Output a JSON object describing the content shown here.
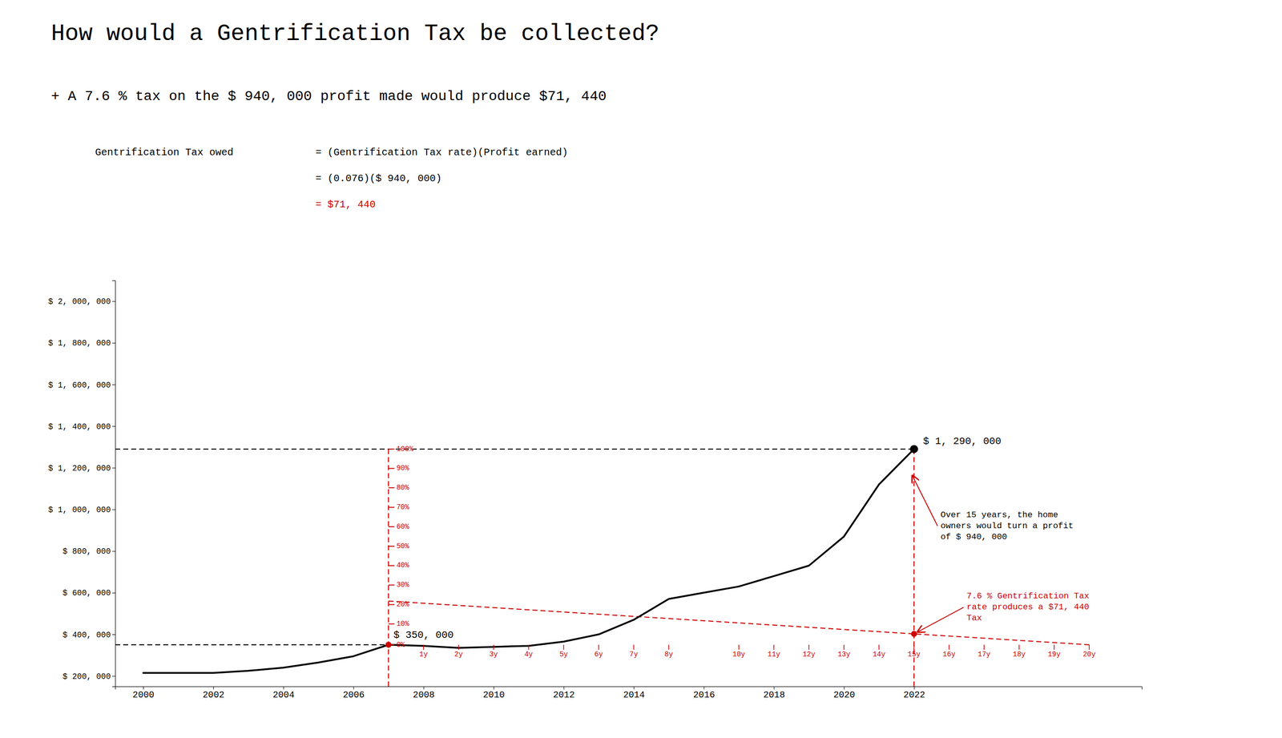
{
  "chart_data": {
    "type": "line",
    "title": "How would a Gentrification Tax be collected?",
    "subtitle": "+   A 7.6 % tax on the $ 940, 000 profit made would produce $71, 440",
    "formula": {
      "label": "Gentrification Tax owed",
      "lines": [
        "= (Gentrification Tax rate)(Profit earned)",
        "= (0.076)($ 940, 000)",
        "= $71, 440"
      ],
      "colors": [
        "#000000",
        "#000000",
        "#cc0000"
      ]
    },
    "x": [
      2000,
      2001,
      2002,
      2003,
      2004,
      2005,
      2006,
      2007,
      2008,
      2009,
      2010,
      2011,
      2012,
      2013,
      2014,
      2015,
      2016,
      2017,
      2018,
      2019,
      2020,
      2021,
      2022
    ],
    "series": [
      {
        "color": "#000000",
        "values": [
          215000,
          215000,
          215000,
          225000,
          240000,
          265000,
          295000,
          350000,
          345000,
          335000,
          340000,
          345000,
          365000,
          400000,
          470000,
          570000,
          600000,
          630000,
          680000,
          730000,
          870000,
          1120000,
          1290000
        ]
      }
    ],
    "purchase": {
      "x": 2007,
      "y": 350000,
      "label": "$ 350, 000",
      "color": "#cc0000"
    },
    "sale": {
      "x": 2022,
      "y": 1290000,
      "label": "$ 1, 290, 000",
      "color": "#000000"
    },
    "tax_line": {
      "x": [
        2007,
        2027
      ],
      "values": [
        560000,
        350000
      ],
      "color": "#cc0000"
    },
    "tax_point": {
      "x": 2022,
      "y": 402500,
      "color": "#cc0000"
    },
    "pct_ticks": [
      {
        "value": 1290000,
        "label": "100%"
      },
      {
        "value": 1197000,
        "label": "90%"
      },
      {
        "value": 1104000,
        "label": "80%"
      },
      {
        "value": 1010000,
        "label": "70%"
      },
      {
        "value": 917000,
        "label": "60%"
      },
      {
        "value": 823000,
        "label": "50%"
      },
      {
        "value": 730000,
        "label": "40%"
      },
      {
        "value": 637000,
        "label": "30%"
      },
      {
        "value": 543000,
        "label": "20%"
      },
      {
        "value": 450000,
        "label": "10%"
      },
      {
        "value": 350000,
        "label": "0%"
      }
    ],
    "year_ticks": [
      {
        "value": 2008,
        "label": "1y"
      },
      {
        "value": 2009,
        "label": "2y"
      },
      {
        "value": 2010,
        "label": "3y"
      },
      {
        "value": 2011,
        "label": "4y"
      },
      {
        "value": 2012,
        "label": "5y"
      },
      {
        "value": 2013,
        "label": "6y"
      },
      {
        "value": 2014,
        "label": "7y"
      },
      {
        "value": 2015,
        "label": "8y"
      },
      {
        "value": 2017,
        "label": "10y"
      },
      {
        "value": 2018,
        "label": "11y"
      },
      {
        "value": 2019,
        "label": "12y"
      },
      {
        "value": 2020,
        "label": "13y"
      },
      {
        "value": 2021,
        "label": "14y"
      },
      {
        "value": 2022,
        "label": "15y"
      },
      {
        "value": 2023,
        "label": "16y"
      },
      {
        "value": 2024,
        "label": "17y"
      },
      {
        "value": 2025,
        "label": "18y"
      },
      {
        "value": 2026,
        "label": "19y"
      },
      {
        "value": 2027,
        "label": "20y"
      }
    ],
    "annotations": [
      {
        "text": [
          "Over 15 years, the home",
          "owners would turn a profit",
          "of $ 940, 000"
        ],
        "x": 2021.9,
        "y": 1180000,
        "color": "#000000"
      },
      {
        "text": [
          "7.6 % Gentrification Tax",
          "rate produces a $71, 440",
          "Tax"
        ],
        "x": 2022,
        "y": 402500,
        "color": "#cc0000"
      }
    ],
    "xlim": [
      1999.2,
      2028.5
    ],
    "xticks": [
      2000,
      2002,
      2004,
      2006,
      2008,
      2010,
      2012,
      2014,
      2016,
      2018,
      2020,
      2022
    ],
    "ylim": [
      150000,
      2100000
    ],
    "yticks": [
      {
        "value": 200000,
        "label": "$ 200, 000"
      },
      {
        "value": 400000,
        "label": "$ 400, 000"
      },
      {
        "value": 600000,
        "label": "$ 600, 000"
      },
      {
        "value": 800000,
        "label": "$ 800, 000"
      },
      {
        "value": 1000000,
        "label": "$ 1, 000, 000"
      },
      {
        "value": 1200000,
        "label": "$ 1, 200, 000"
      },
      {
        "value": 1400000,
        "label": "$ 1, 400, 000"
      },
      {
        "value": 1600000,
        "label": "$ 1, 600, 000"
      },
      {
        "value": 1800000,
        "label": "$ 1, 800, 000"
      },
      {
        "value": 2000000,
        "label": "$ 2, 000, 000"
      }
    ],
    "grid": false
  }
}
